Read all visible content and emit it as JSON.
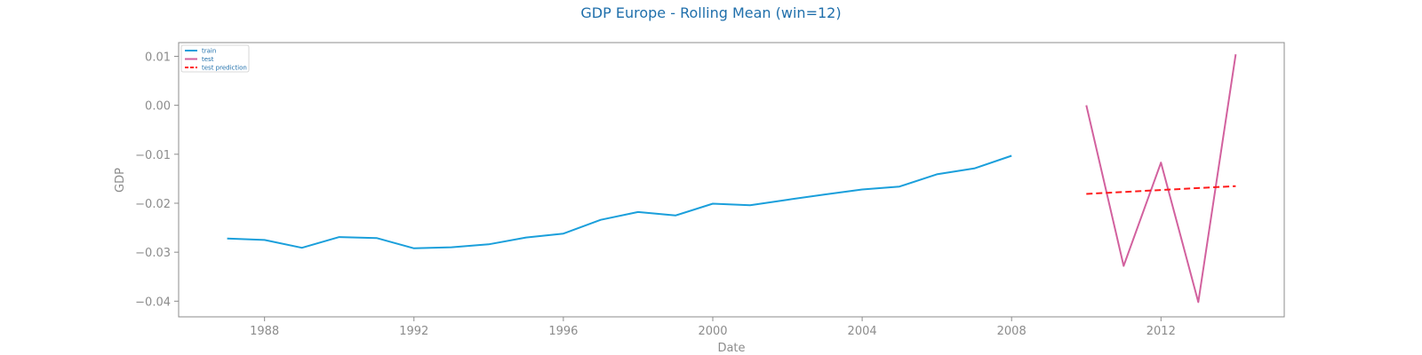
{
  "chart_data": {
    "type": "line",
    "title": "GDP Europe - Rolling Mean (win=12)",
    "xlabel": "Date",
    "ylabel": "GDP",
    "xlim": [
      1985.7,
      2015.3
    ],
    "ylim": [
      -0.0432,
      0.0128
    ],
    "xticks": [
      1988,
      1992,
      1996,
      2000,
      2004,
      2008,
      2012
    ],
    "yticks": [
      0.01,
      0.0,
      -0.01,
      -0.02,
      -0.03,
      -0.04
    ],
    "ytick_labels": [
      "0.01",
      "0.00",
      "−0.01",
      "−0.02",
      "−0.03",
      "−0.04"
    ],
    "grid": false,
    "legend_position": "top-left",
    "series": [
      {
        "name": "train",
        "color": "#1a9fdb",
        "style": "solid",
        "x": [
          1987,
          1988,
          1989,
          1990,
          1991,
          1992,
          1993,
          1994,
          1995,
          1996,
          1997,
          1998,
          1999,
          2000,
          2001,
          2002,
          2003,
          2004,
          2005,
          2006,
          2007,
          2008
        ],
        "y": [
          -0.0272,
          -0.0275,
          -0.0291,
          -0.0269,
          -0.0271,
          -0.0292,
          -0.029,
          -0.0284,
          -0.027,
          -0.0262,
          -0.0234,
          -0.0218,
          -0.0225,
          -0.0201,
          -0.0204,
          -0.0193,
          -0.0182,
          -0.0172,
          -0.0166,
          -0.0141,
          -0.0129,
          -0.0103
        ]
      },
      {
        "name": "test",
        "color": "#d2619e",
        "style": "solid",
        "x": [
          2010,
          2011,
          2012,
          2013,
          2014
        ],
        "y": [
          0.0,
          -0.0328,
          -0.0117,
          -0.0402,
          0.0104
        ]
      },
      {
        "name": "test prediction",
        "color": "#ff1a1a",
        "style": "dashed",
        "x": [
          2010,
          2011,
          2012,
          2013,
          2014
        ],
        "y": [
          -0.0181,
          -0.0177,
          -0.0173,
          -0.0169,
          -0.0165
        ]
      }
    ]
  }
}
